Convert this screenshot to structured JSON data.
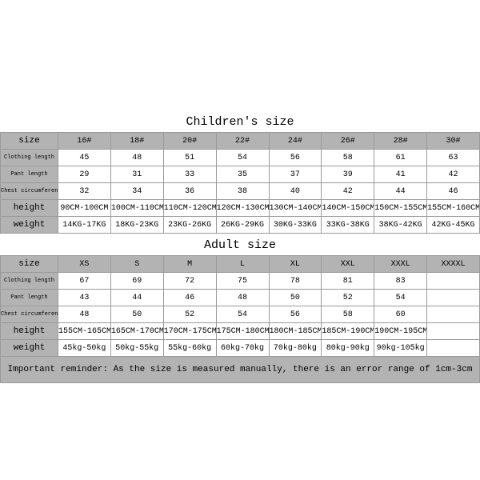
{
  "colors": {
    "header_bg": "#b3b3b3",
    "border": "#9a9a9a",
    "page_bg": "#ffffff",
    "text": "#000000"
  },
  "typography": {
    "font_family": "Courier New",
    "title_fontsize": 15,
    "cell_fontsize": 10,
    "small_label_fontsize": 7,
    "reminder_fontsize": 11
  },
  "children": {
    "title": "Children's size",
    "row_labels": [
      "size",
      "Clothing length",
      "Pant length",
      "Chest circumference 1/2",
      "height",
      "weight"
    ],
    "columns": [
      "16#",
      "18#",
      "20#",
      "22#",
      "24#",
      "26#",
      "28#",
      "30#"
    ],
    "rows": {
      "clothing_length": [
        "45",
        "48",
        "51",
        "54",
        "56",
        "58",
        "61",
        "63"
      ],
      "pant_length": [
        "29",
        "31",
        "33",
        "35",
        "37",
        "39",
        "41",
        "42"
      ],
      "chest": [
        "32",
        "34",
        "36",
        "38",
        "40",
        "42",
        "44",
        "46"
      ],
      "height_vals": [
        "90CM-100CM",
        "100CM-110CM",
        "110CM-120CM",
        "120CM-130CM",
        "130CM-140CM",
        "140CM-150CM",
        "150CM-155CM",
        "155CM-160CM"
      ],
      "weight_vals": [
        "14KG-17KG",
        "18KG-23KG",
        "23KG-26KG",
        "26KG-29KG",
        "30KG-33KG",
        "33KG-38KG",
        "38KG-42KG",
        "42KG-45KG"
      ]
    }
  },
  "adult": {
    "title": "Adult size",
    "row_labels": [
      "size",
      "Clothing length",
      "Pant length",
      "Chest circumference 1/2",
      "height",
      "weight"
    ],
    "columns": [
      "XS",
      "S",
      "M",
      "L",
      "XL",
      "XXL",
      "XXXL",
      "XXXXL"
    ],
    "rows": {
      "clothing_length": [
        "67",
        "69",
        "72",
        "75",
        "78",
        "81",
        "83",
        ""
      ],
      "pant_length": [
        "43",
        "44",
        "46",
        "48",
        "50",
        "52",
        "54",
        ""
      ],
      "chest": [
        "48",
        "50",
        "52",
        "54",
        "56",
        "58",
        "60",
        ""
      ],
      "height_vals": [
        "155CM-165CM",
        "165CM-170CM",
        "170CM-175CM",
        "175CM-180CM",
        "180CM-185CM",
        "185CM-190CM",
        "190CM-195CM",
        ""
      ],
      "weight_vals": [
        "45kg-50kg",
        "50kg-55kg",
        "55kg-60kg",
        "60kg-70kg",
        "70kg-80kg",
        "80kg-90kg",
        "90kg-105kg",
        ""
      ]
    }
  },
  "reminder": "Important reminder: As the size is measured manually, there is an error range of 1cm-3cm"
}
